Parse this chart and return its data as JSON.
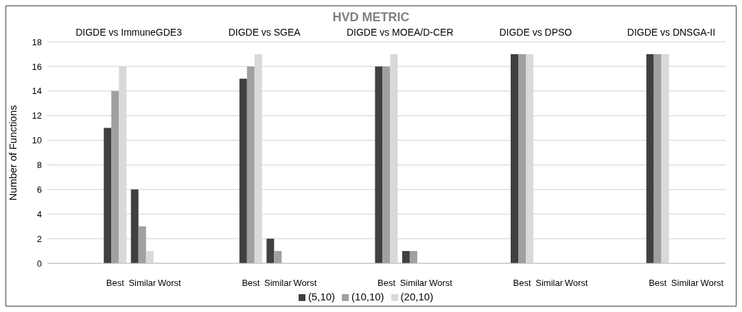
{
  "chart_data": {
    "type": "bar",
    "title": "HVD METRIC",
    "ylabel": "Number of Functions",
    "categories": [
      null,
      null,
      "Best",
      "Similar",
      "Worst",
      null,
      null,
      "Best",
      "Similar",
      "Worst",
      null,
      null,
      "Best",
      "Similar",
      "Worst",
      null,
      null,
      "Best",
      "Similar",
      "Worst",
      null,
      null,
      "Best",
      "Similar",
      "Worst"
    ],
    "series": [
      {
        "name": "(5,10)",
        "color": "#404040",
        "values": [
          null,
          null,
          11,
          6,
          0,
          null,
          null,
          15,
          2,
          0,
          null,
          null,
          16,
          1,
          0,
          null,
          null,
          17,
          0,
          0,
          null,
          null,
          17,
          0,
          0
        ]
      },
      {
        "name": "(10,10)",
        "color": "#a0a0a0",
        "values": [
          null,
          null,
          14,
          3,
          0,
          null,
          null,
          16,
          1,
          0,
          null,
          null,
          16,
          1,
          0,
          null,
          null,
          17,
          0,
          0,
          null,
          null,
          17,
          0,
          0
        ]
      },
      {
        "name": "(20,10)",
        "color": "#d9d9d9",
        "values": [
          null,
          null,
          16,
          1,
          0,
          null,
          null,
          17,
          0,
          0,
          null,
          null,
          17,
          0,
          0,
          null,
          null,
          17,
          0,
          0,
          null,
          null,
          17,
          0,
          0
        ]
      }
    ],
    "annotations": [
      "DIGDE vs ImmuneGDE3",
      "DIGDE vs SGEA",
      "DIGDE vs MOEA/D-CER",
      "DIGDE vs DPSO",
      "DIGDE vs DNSGA-II"
    ],
    "ylim": [
      0,
      18
    ],
    "yticks": [
      0,
      2,
      4,
      6,
      8,
      10,
      12,
      14,
      16,
      18
    ],
    "grid": "y",
    "legend": "bottom"
  }
}
